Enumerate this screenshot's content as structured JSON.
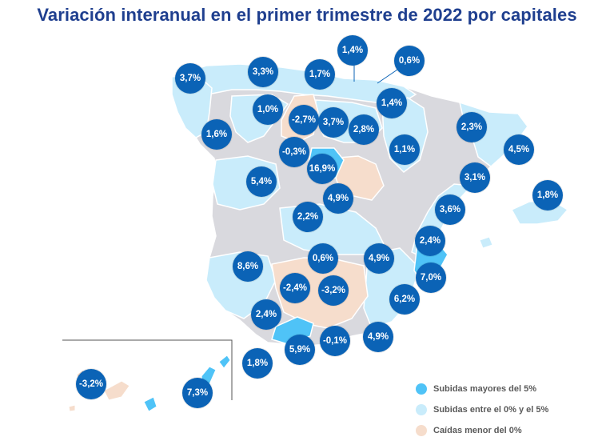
{
  "title": "Variación interanual en el primer trimestre de 2022 por capitales",
  "legend": [
    {
      "label": "Subidas mayores del 5%",
      "color": "#4fc3f7"
    },
    {
      "label": "Subidas entre el 0% y el 5%",
      "color": "#c9ecfb"
    },
    {
      "label": "Caídas menor del 0%",
      "color": "#f6ddcc"
    }
  ],
  "colors": {
    "bubble": "#0b63b6",
    "land_gray": "#d9d9de",
    "up_low": "#c9ecfb",
    "up_high": "#4fc3f7",
    "down": "#f6ddcc"
  },
  "bubbles": [
    {
      "label": "3,7%"
    },
    {
      "label": "3,3%"
    },
    {
      "label": "1,7%"
    },
    {
      "label": "1,4%"
    },
    {
      "label": "0,6%"
    },
    {
      "label": "1,0%"
    },
    {
      "label": "1,4%"
    },
    {
      "label": "-2,7%"
    },
    {
      "label": "3,7%"
    },
    {
      "label": "2,8%"
    },
    {
      "label": "2,3%"
    },
    {
      "label": "1,6%"
    },
    {
      "label": "-0,3%"
    },
    {
      "label": "1,1%"
    },
    {
      "label": "4,5%"
    },
    {
      "label": "16,9%"
    },
    {
      "label": "5,4%"
    },
    {
      "label": "3,1%"
    },
    {
      "label": "1,8%"
    },
    {
      "label": "4,9%"
    },
    {
      "label": "2,2%"
    },
    {
      "label": "3,6%"
    },
    {
      "label": "2,4%"
    },
    {
      "label": "8,6%"
    },
    {
      "label": "0,6%"
    },
    {
      "label": "4,9%"
    },
    {
      "label": "7,0%"
    },
    {
      "label": "-2,4%"
    },
    {
      "label": "-3,2%"
    },
    {
      "label": "6,2%"
    },
    {
      "label": "2,4%"
    },
    {
      "label": "-0,1%"
    },
    {
      "label": "4,9%"
    },
    {
      "label": "5,9%"
    },
    {
      "label": "1,8%"
    },
    {
      "label": "-3,2%"
    },
    {
      "label": "7,3%"
    }
  ]
}
